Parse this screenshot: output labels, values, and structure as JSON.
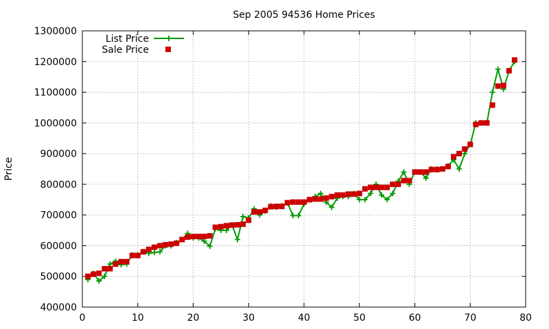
{
  "chart_data": {
    "type": "line",
    "title": "Sep 2005 94536 Home Prices",
    "xlabel": "",
    "ylabel": "Price",
    "xlim": [
      0,
      80
    ],
    "ylim": [
      400000,
      1300000
    ],
    "xticks": [
      0,
      10,
      20,
      30,
      40,
      50,
      60,
      70,
      80
    ],
    "yticks": [
      400000,
      500000,
      600000,
      700000,
      800000,
      900000,
      1000000,
      1100000,
      1200000,
      1300000
    ],
    "grid": true,
    "legend": "top-left",
    "series": [
      {
        "name": "List Price",
        "style": "line-plus",
        "color": "#009900",
        "x": [
          1,
          2,
          3,
          4,
          5,
          6,
          7,
          8,
          9,
          10,
          11,
          12,
          13,
          14,
          15,
          16,
          17,
          18,
          19,
          20,
          21,
          22,
          23,
          24,
          25,
          26,
          27,
          28,
          29,
          30,
          31,
          32,
          33,
          34,
          35,
          36,
          37,
          38,
          39,
          40,
          41,
          42,
          43,
          44,
          45,
          46,
          47,
          48,
          49,
          50,
          51,
          52,
          53,
          54,
          55,
          56,
          57,
          58,
          59,
          60,
          61,
          62,
          63,
          64,
          65,
          66,
          67,
          68,
          69,
          70,
          71,
          72,
          73,
          74,
          75,
          76,
          77,
          78
        ],
        "y": [
          490000,
          510000,
          485000,
          500000,
          540000,
          550000,
          538000,
          540000,
          570000,
          570000,
          580000,
          575000,
          578000,
          580000,
          600000,
          600000,
          610000,
          620000,
          640000,
          625000,
          625000,
          615000,
          598000,
          655000,
          650000,
          650000,
          668000,
          620000,
          695000,
          690000,
          720000,
          700000,
          712000,
          730000,
          725000,
          730000,
          740000,
          698000,
          698000,
          735000,
          750000,
          760000,
          770000,
          742000,
          725000,
          755000,
          760000,
          760000,
          770000,
          750000,
          750000,
          770000,
          800000,
          765000,
          750000,
          770000,
          810000,
          840000,
          800000,
          840000,
          840000,
          820000,
          850000,
          850000,
          850000,
          860000,
          880000,
          850000,
          900000,
          930000,
          1000000,
          1000000,
          1000000,
          1100000,
          1175000,
          1110000,
          1170000,
          1200000
        ]
      },
      {
        "name": "Sale Price",
        "style": "square-markers",
        "color": "#cc0000",
        "x": [
          1,
          2,
          3,
          4,
          5,
          6,
          7,
          8,
          9,
          10,
          11,
          12,
          13,
          14,
          15,
          16,
          17,
          18,
          19,
          20,
          21,
          22,
          23,
          24,
          25,
          26,
          27,
          28,
          29,
          30,
          31,
          32,
          33,
          34,
          35,
          36,
          37,
          38,
          39,
          40,
          41,
          42,
          43,
          44,
          45,
          46,
          47,
          48,
          49,
          50,
          51,
          52,
          53,
          54,
          55,
          56,
          57,
          58,
          59,
          60,
          61,
          62,
          63,
          64,
          65,
          66,
          67,
          68,
          69,
          70,
          71,
          72,
          73,
          74,
          75,
          76,
          77,
          78
        ],
        "y": [
          500000,
          507000,
          510000,
          525000,
          525000,
          540000,
          548000,
          548000,
          568000,
          568000,
          580000,
          588000,
          595000,
          600000,
          603000,
          605000,
          608000,
          620000,
          628000,
          630000,
          630000,
          630000,
          632000,
          660000,
          662000,
          665000,
          667000,
          668000,
          670000,
          683000,
          710000,
          710000,
          715000,
          727000,
          728000,
          728000,
          740000,
          742000,
          742000,
          742000,
          750000,
          752000,
          752000,
          755000,
          760000,
          765000,
          765000,
          768000,
          768000,
          770000,
          785000,
          790000,
          790000,
          790000,
          790000,
          800000,
          800000,
          812000,
          812000,
          840000,
          840000,
          840000,
          848000,
          848000,
          850000,
          858000,
          890000,
          900000,
          915000,
          930000,
          995000,
          1000000,
          1000000,
          1058000,
          1120000,
          1122000,
          1170000,
          1205000
        ]
      }
    ]
  }
}
